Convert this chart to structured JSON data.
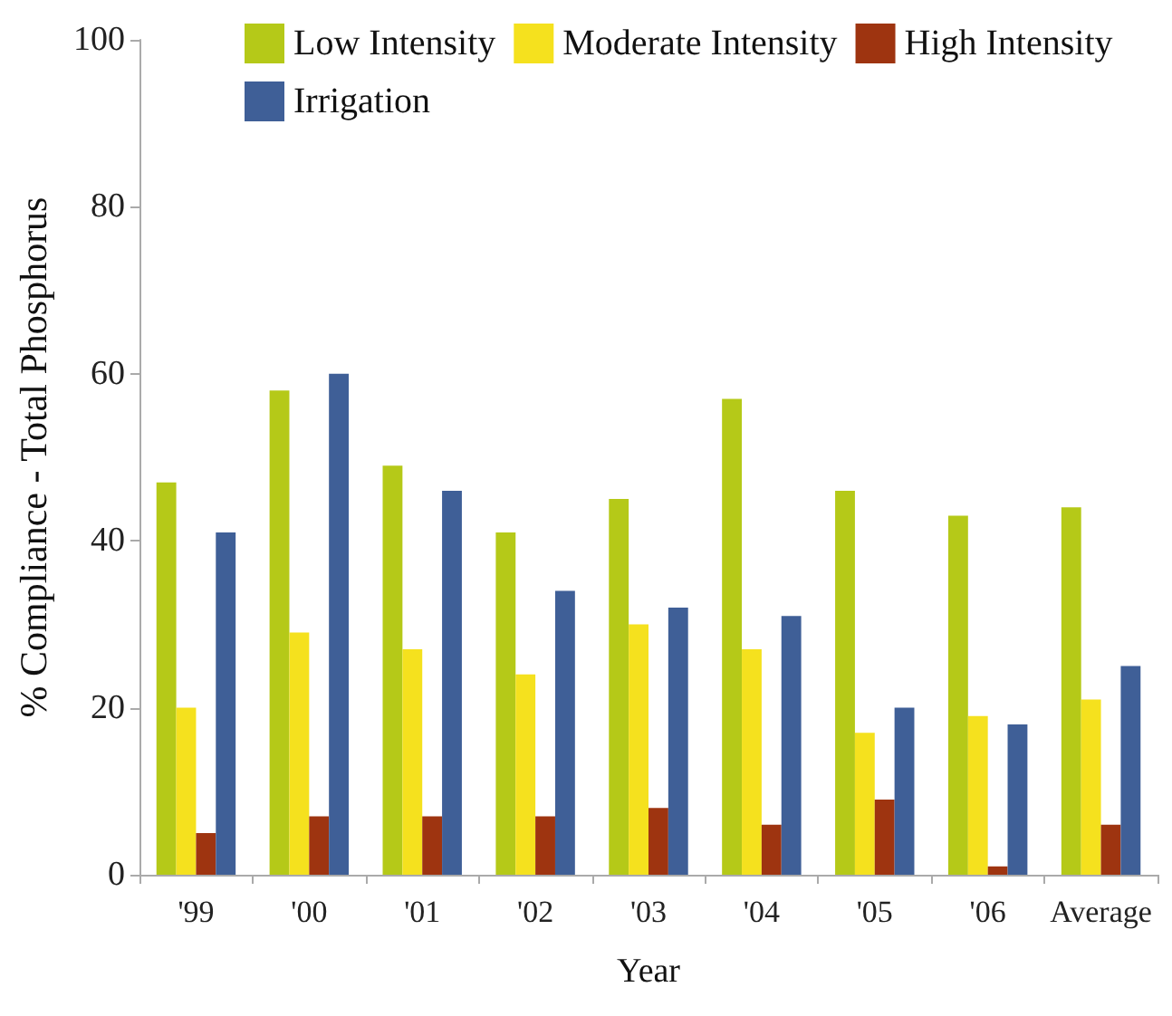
{
  "chart_data": {
    "type": "bar",
    "xlabel": "Year",
    "ylabel": "% Compliance - Total Phosphorus",
    "categories": [
      "'99",
      "'00",
      "'01",
      "'02",
      "'03",
      "'04",
      "'05",
      "'06",
      "Average"
    ],
    "series": [
      {
        "name": "Low Intensity",
        "color": "#b5c918",
        "values": [
          47,
          58,
          49,
          41,
          45,
          57,
          46,
          43,
          44
        ]
      },
      {
        "name": "Moderate Intensity",
        "color": "#f5e11e",
        "values": [
          20,
          29,
          27,
          24,
          30,
          27,
          17,
          19,
          21
        ]
      },
      {
        "name": "High Intensity",
        "color": "#9e3410",
        "values": [
          5,
          7,
          7,
          7,
          8,
          6,
          9,
          1,
          6
        ]
      },
      {
        "name": "Irrigation",
        "color": "#3f5f97",
        "values": [
          41,
          60,
          46,
          34,
          32,
          31,
          20,
          18,
          25
        ]
      }
    ],
    "ylim": [
      0,
      100
    ],
    "yticks": [
      0,
      20,
      40,
      60,
      80,
      100
    ],
    "grid": false,
    "legend": "top"
  }
}
